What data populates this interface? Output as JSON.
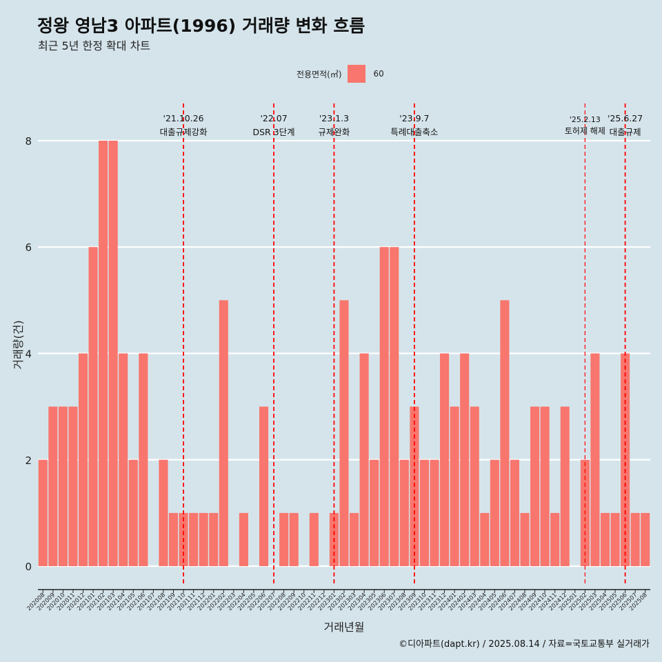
{
  "title": "정왕 영남3 아파트(1996) 거래량 변화 흐름",
  "subtitle": "최근 5년 한정 확대 차트",
  "legend": {
    "title": "전용면적(㎡)",
    "label": "60",
    "color": "#f8766d"
  },
  "caption": "©디아파트(dapt.kr) / 2025.08.14 / 자료=국토교통부 실거래가",
  "chart_data": {
    "type": "bar",
    "title": "정왕 영남3 아파트(1996) 거래량 변화 흐름",
    "subtitle": "최근 5년 한정 확대 차트",
    "xlabel": "거래년월",
    "ylabel": "거래량(건)",
    "ylim": [
      -0.35,
      8.7
    ],
    "yticks": [
      0,
      2,
      4,
      6,
      8
    ],
    "grid": true,
    "legend_position": "top",
    "bar_color": "#f8766d",
    "categories": [
      "202008",
      "202009",
      "202010",
      "202011",
      "202012",
      "202101",
      "202102",
      "202103",
      "202104",
      "202105",
      "202106",
      "202107",
      "202108",
      "202109",
      "202110",
      "202111",
      "202112",
      "202201",
      "202202",
      "202203",
      "202204",
      "202205",
      "202206",
      "202207",
      "202208",
      "202209",
      "202210",
      "202211",
      "202212",
      "202301",
      "202302",
      "202303",
      "202304",
      "202305",
      "202306",
      "202307",
      "202308",
      "202309",
      "202310",
      "202311",
      "202312",
      "202401",
      "202402",
      "202403",
      "202404",
      "202405",
      "202406",
      "202407",
      "202408",
      "202409",
      "202410",
      "202411",
      "202412",
      "202501",
      "202502",
      "202503",
      "202504",
      "202505",
      "202506",
      "202507",
      "202508"
    ],
    "series": [
      {
        "name": "60",
        "values": [
          2,
          3,
          3,
          3,
          4,
          6,
          8,
          8,
          4,
          2,
          4,
          0,
          2,
          1,
          1,
          1,
          1,
          1,
          5,
          0,
          1,
          0,
          3,
          0,
          1,
          1,
          0,
          1,
          0,
          1,
          5,
          1,
          4,
          2,
          6,
          6,
          2,
          3,
          2,
          2,
          4,
          3,
          4,
          3,
          1,
          2,
          5,
          2,
          1,
          3,
          3,
          1,
          3,
          0,
          2,
          4,
          1,
          1,
          4,
          1,
          1
        ]
      }
    ],
    "annotations": [
      {
        "category": "202110",
        "date": "'21.10.26",
        "text": "대출규제강화"
      },
      {
        "category": "202207",
        "date": "'22.07",
        "text": "DSR 3단계"
      },
      {
        "category": "202301",
        "date": "'23.1.3",
        "text": "규제완화"
      },
      {
        "category": "202309",
        "date": "'23.9.7",
        "text": "특례대출축소"
      },
      {
        "category": "202502",
        "date": "'25.2.13",
        "text": "토허제 해제"
      },
      {
        "category": "202506",
        "date": "'25.6.27",
        "text": "대출규제"
      }
    ]
  }
}
